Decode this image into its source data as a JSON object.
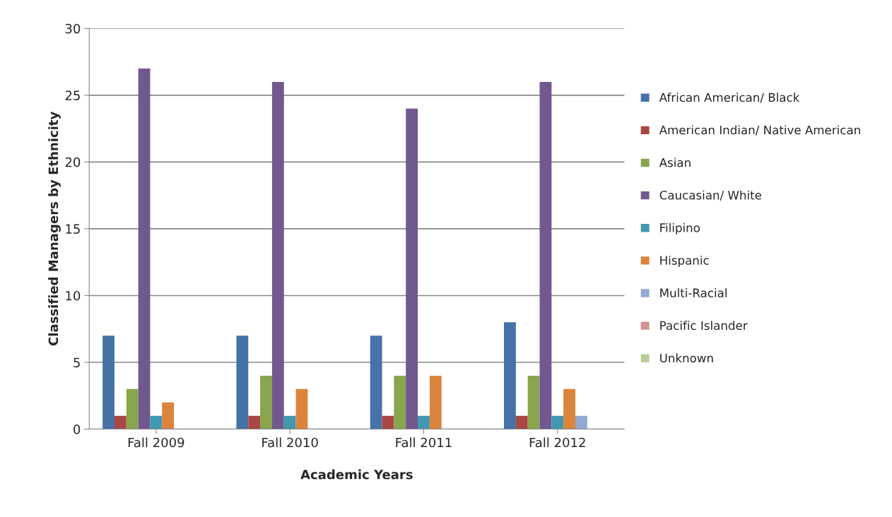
{
  "chart_data": {
    "type": "bar",
    "xlabel": "Academic Years",
    "ylabel": "Classified Managers by Ethnicity",
    "categories": [
      "Fall 2009",
      "Fall 2010",
      "Fall 2011",
      "Fall 2012"
    ],
    "series": [
      {
        "name": "African American/ Black",
        "color": "#4572a7",
        "values": [
          7,
          7,
          7,
          8
        ]
      },
      {
        "name": "American Indian/ Native American",
        "color": "#aa4643",
        "values": [
          1,
          1,
          1,
          1
        ]
      },
      {
        "name": "Asian",
        "color": "#89a54e",
        "values": [
          3,
          4,
          4,
          4
        ]
      },
      {
        "name": "Caucasian/ White",
        "color": "#71588f",
        "values": [
          27,
          26,
          24,
          26
        ]
      },
      {
        "name": "Filipino",
        "color": "#4198af",
        "values": [
          1,
          1,
          1,
          1
        ]
      },
      {
        "name": "Hispanic",
        "color": "#db843d",
        "values": [
          2,
          3,
          4,
          3
        ]
      },
      {
        "name": "Multi-Racial",
        "color": "#93a9cf",
        "values": [
          null,
          null,
          null,
          1
        ]
      },
      {
        "name": "Pacific Islander",
        "color": "#d19392",
        "values": [
          null,
          null,
          null,
          null
        ]
      },
      {
        "name": "Unknown",
        "color": "#b9cd96",
        "values": [
          null,
          null,
          null,
          null
        ]
      }
    ],
    "ylim": [
      0,
      30
    ],
    "yticks": [
      0,
      5,
      10,
      15,
      20,
      25,
      30
    ],
    "grid": "y",
    "legend": "right"
  }
}
